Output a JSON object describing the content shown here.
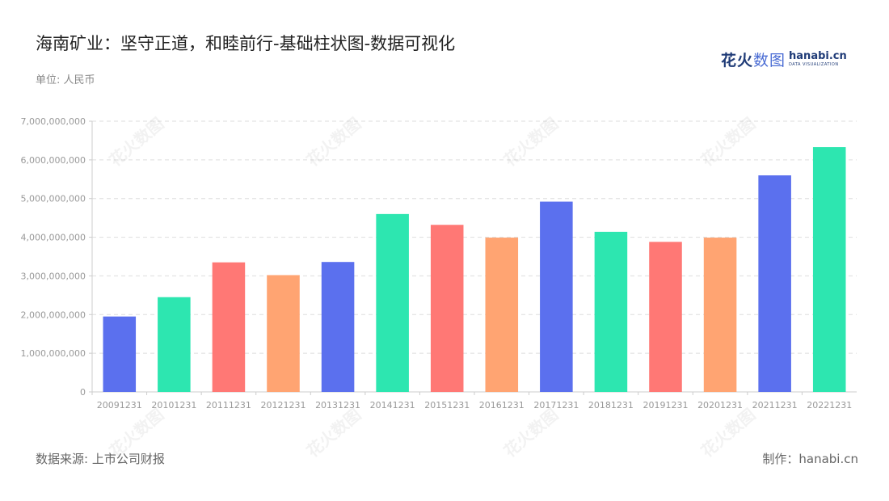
{
  "title": "海南矿业：坚守正道，和睦前行-基础柱状图-数据可视化",
  "unit": "单位: 人民币",
  "logo": {
    "cn_a": "花火",
    "cn_b": "数图",
    "en": "hanabi.cn",
    "sub": "DATA VISUALIZATION"
  },
  "footer": {
    "source": "数据来源: 上市公司财报",
    "maker": "制作：hanabi.cn"
  },
  "watermark_text": "花火数图",
  "chart_data": {
    "type": "bar",
    "categories": [
      "20091231",
      "20101231",
      "20111231",
      "20121231",
      "20131231",
      "20141231",
      "20151231",
      "20161231",
      "20171231",
      "20181231",
      "20191231",
      "20201231",
      "20211231",
      "20221231"
    ],
    "values": [
      1950000000,
      2450000000,
      3350000000,
      3020000000,
      3360000000,
      4600000000,
      4320000000,
      3990000000,
      4920000000,
      4140000000,
      3880000000,
      3990000000,
      5600000000,
      6330000000
    ],
    "colors": [
      "#5b70ee",
      "#2de6b0",
      "#ff7875",
      "#ffa472",
      "#5b70ee",
      "#2de6b0",
      "#ff7875",
      "#ffa472",
      "#5b70ee",
      "#2de6b0",
      "#ff7875",
      "#ffa472",
      "#5b70ee",
      "#2de6b0"
    ],
    "yticks": [
      "0",
      "1,000,000,000",
      "2,000,000,000",
      "3,000,000,000",
      "4,000,000,000",
      "5,000,000,000",
      "6,000,000,000",
      "7,000,000,000"
    ],
    "ylim": [
      0,
      7000000000
    ],
    "grid": true
  }
}
